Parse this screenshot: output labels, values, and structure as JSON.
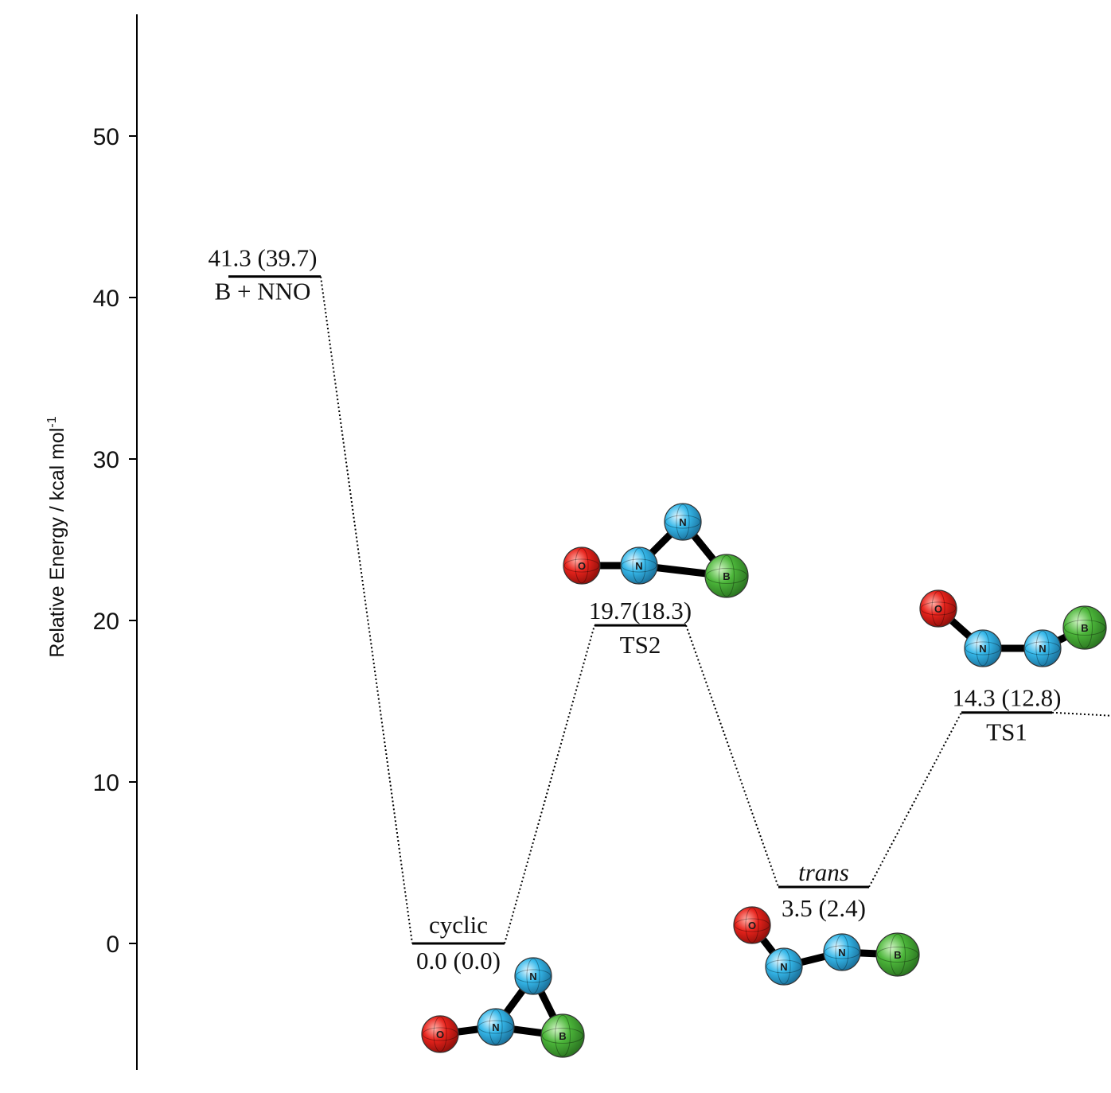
{
  "colors": {
    "oxygen": "#e8231c",
    "nitrogen": "#35b8ea",
    "boron": "#4cb63a",
    "bond": "#000000",
    "axis": "#000000"
  },
  "chart_data": {
    "type": "energy-level-diagram",
    "ylabel": "Relative Energy / kcal mol",
    "ylabel_sup": "-1",
    "ylim": [
      -7.5,
      57.5
    ],
    "yticks": [
      0,
      10,
      20,
      30,
      40,
      50
    ],
    "ytick_labels": [
      "0",
      "10",
      "20",
      "30",
      "40",
      "50"
    ],
    "levels": [
      {
        "id": "reactants",
        "value": 41.3,
        "label_top": "41.3 (39.7)",
        "label_bottom": "B + NNO"
      },
      {
        "id": "cyclic",
        "value": 0.0,
        "label_top": "cyclic",
        "label_bottom": "0.0 (0.0)"
      },
      {
        "id": "ts2",
        "value": 19.7,
        "label_top": "19.7(18.3)",
        "label_bottom": "TS2"
      },
      {
        "id": "trans",
        "value": 3.5,
        "label_top": "trans",
        "label_bottom": "3.5 (2.4)"
      },
      {
        "id": "ts1",
        "value": 14.3,
        "label_top": "14.3 (12.8)",
        "label_bottom": "TS1"
      }
    ],
    "connections": [
      [
        "reactants",
        "cyclic"
      ],
      [
        "cyclic",
        "ts2"
      ],
      [
        "ts2",
        "trans"
      ],
      [
        "trans",
        "ts1"
      ]
    ],
    "molecules": [
      {
        "id": "cyclic-molecule",
        "atoms": [
          "O",
          "N",
          "N",
          "B"
        ]
      },
      {
        "id": "ts2-molecule",
        "atoms": [
          "O",
          "N",
          "N",
          "B"
        ]
      },
      {
        "id": "trans-molecule",
        "atoms": [
          "O",
          "N",
          "N",
          "B"
        ]
      },
      {
        "id": "ts1-molecule",
        "atoms": [
          "O",
          "N",
          "N",
          "B"
        ]
      }
    ]
  }
}
